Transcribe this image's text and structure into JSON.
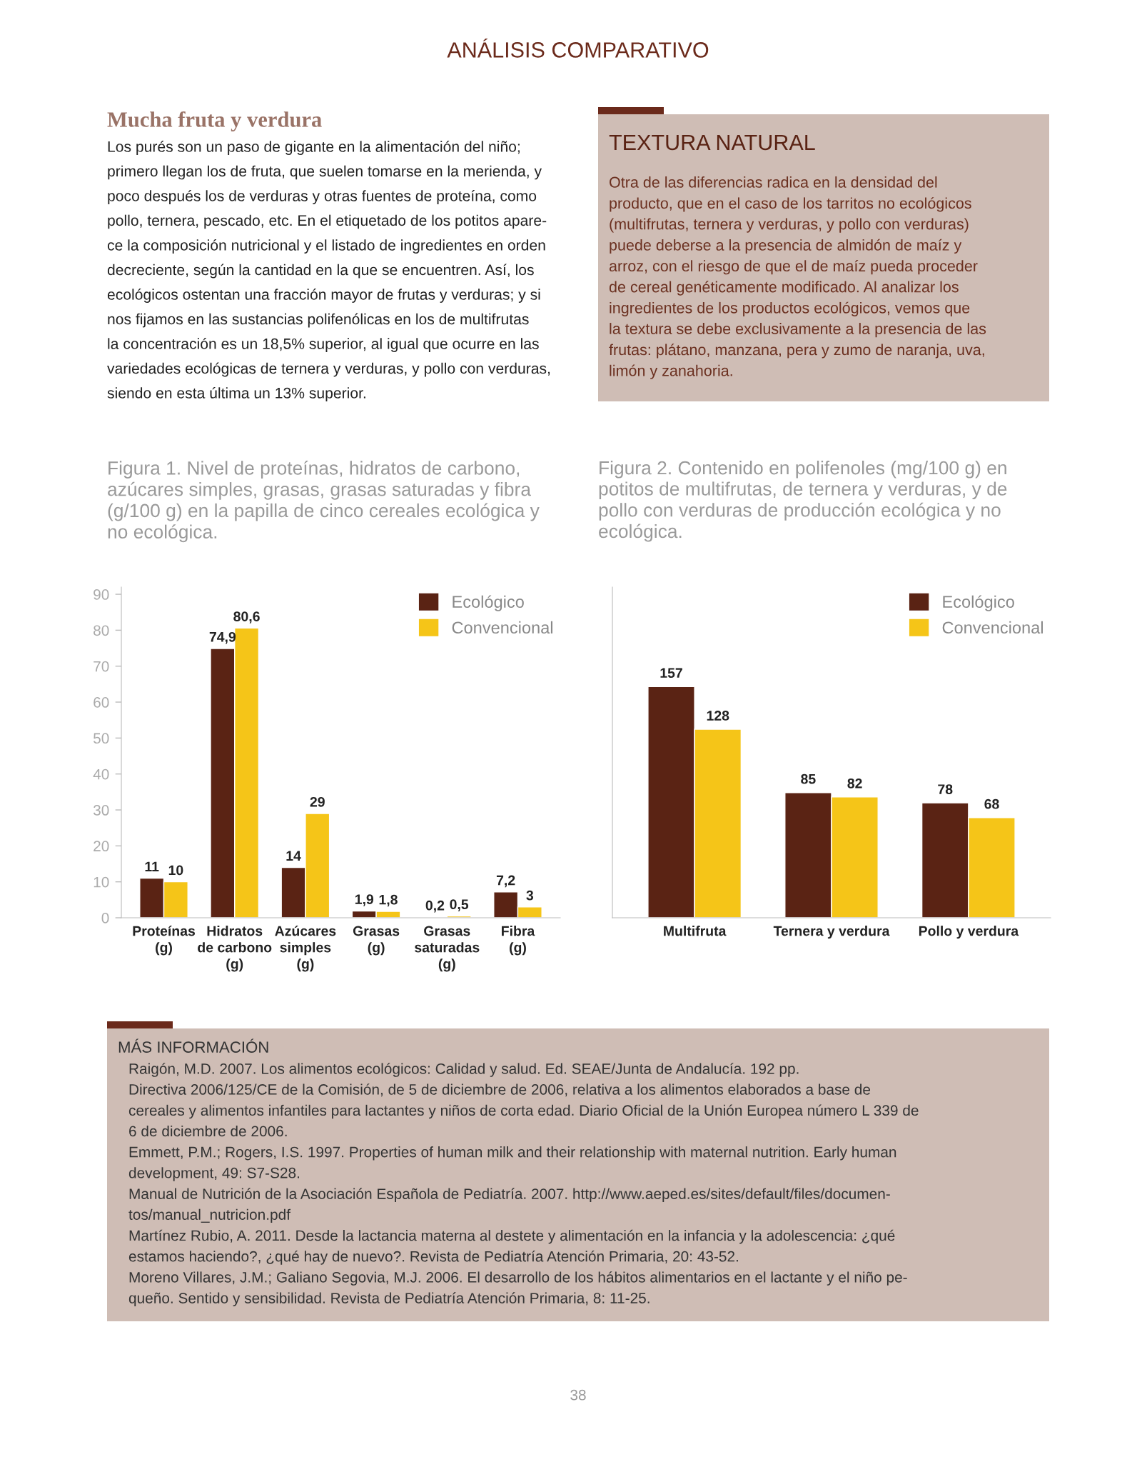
{
  "chart_data": [
    {
      "type": "other",
      "title": "ANÁLISIS COMPARATIVO"
    },
    {
      "type": "other",
      "title": "Mucha fruta y verdura",
      "annotations": [
        "Los purés son un paso de gigante en la alimentación del niño;",
        "primero llegan los de fruta, que suelen tomarse en la merienda, y",
        "poco después los de verduras y otras fuentes de proteína, como",
        "pollo, ternera, pescado, etc. En el etiquetado de los potitos apare-",
        "ce la composición nutricional y el listado de ingredientes en orden",
        "decreciente, según la cantidad en la que se encuentren. Así, los",
        "ecológicos ostentan una fracción mayor de frutas y verduras; y si",
        "nos fijamos en las sustancias polifenólicas en los de multifrutas",
        "la concentración es un 18,5% superior, al igual que ocurre en las",
        "variedades ecológicas de ternera y verduras, y pollo con verduras,",
        "siendo en esta última un 13% superior."
      ]
    },
    {
      "type": "other",
      "title": "TEXTURA NATURAL",
      "annotations": [
        "Otra de las diferencias radica en la densidad del",
        "producto, que en el caso de los tarritos no ecológicos",
        "(multifrutas, ternera y verduras, y pollo con verduras)",
        "puede deberse a la presencia de almidón de maíz y",
        "arroz, con el riesgo de que el de maíz pueda proceder",
        "de cereal genéticamente modificado. Al analizar los",
        "ingredientes de los productos ecológicos, vemos que",
        "la textura se debe exclusivamente a la presencia de las",
        "frutas: plátano, manzana, pera y zumo de naranja, uva,",
        "limón y zanahoria."
      ]
    },
    {
      "type": "bar",
      "title": "Figura 1. Nivel de proteínas, hidratos de carbono,\nazúcares simples, grasas, grasas saturadas y fibra\n(g/100 g) en la papilla de cinco cereales ecológica y\nno ecológica.",
      "categories": [
        "Proteínas\n(g)",
        "Hidratos\nde carbono\n(g)",
        "Azúcares\nsimples\n(g)",
        "Grasas\n(g)",
        "Grasas\nsaturadas\n(g)",
        "Fibra\n(g)"
      ],
      "series": [
        {
          "name": "Ecológico",
          "color": "#5a2314",
          "values": [
            11,
            74.9,
            14,
            1.9,
            0.2,
            7.2
          ],
          "value_labels": [
            "11",
            "74,9",
            "14",
            "1,9",
            "0,2",
            "7,2"
          ]
        },
        {
          "name": "Convencional",
          "color": "#f5c518",
          "values": [
            10,
            80.6,
            29,
            1.8,
            0.5,
            3
          ],
          "value_labels": [
            "10",
            "80,6",
            "29",
            "1,8",
            "0,5",
            "3"
          ]
        }
      ],
      "ylim": [
        0,
        92
      ],
      "yticks": [
        0,
        10,
        20,
        30,
        40,
        50,
        60,
        70,
        80,
        90
      ],
      "legend": "top right",
      "grid": false
    },
    {
      "type": "bar",
      "title": "Figura 2. Contenido en polifenoles (mg/100 g) en\npotitos de multifrutas, de ternera y verduras, y de\npollo con verduras de producción ecológica y no\necológica.",
      "categories": [
        "Multifruta",
        "Ternera y verdura",
        "Pollo y verdura"
      ],
      "series": [
        {
          "name": "Ecológico",
          "color": "#5a2314",
          "values": [
            157,
            85,
            78
          ]
        },
        {
          "name": "Convencional",
          "color": "#f5c518",
          "values": [
            128,
            82,
            68
          ]
        }
      ],
      "data_labels": true,
      "tick_labels": "x",
      "legend": "top right",
      "grid": false
    },
    {
      "type": "other",
      "title": "MÁS INFORMACIÓN",
      "annotations": [
        "Raigón, M.D. 2007. Los alimentos ecológicos: Calidad y salud. Ed. SEAE/Junta de Andalucía. 192 pp.",
        "Directiva 2006/125/CE de la Comisión, de 5 de diciembre de 2006, relativa a los alimentos elaborados a base de",
        "cereales y alimentos infantiles para lactantes y niños de corta edad. Diario Oficial de la Unión Europea número L 339 de",
        "6 de diciembre de 2006.",
        "Emmett, P.M.; Rogers, I.S. 1997. Properties of human milk and their relationship with maternal nutrition. Early human",
        "development, 49: S7-S28.",
        "Manual de Nutrición de la Asociación Española de Pediatría. 2007. http://www.aeped.es/sites/default/files/documen-",
        "tos/manual_nutricion.pdf",
        "Martínez Rubio, A. 2011. Desde la lactancia materna al destete y alimentación en la infancia y la adolescencia: ¿qué",
        "estamos haciendo?, ¿qué hay de nuevo?. Revista de Pediatría Atención Primaria, 20: 43-52.",
        "Moreno Villares, J.M.; Galiano Segovia, M.J. 2006. El desarrollo de los hábitos alimentarios en el lactante y el niño pe-",
        "queño. Sentido y sensibilidad. Revista de Pediatría Atención Primaria, 8: 11-25."
      ]
    },
    {
      "type": "other",
      "title": "38"
    }
  ]
}
